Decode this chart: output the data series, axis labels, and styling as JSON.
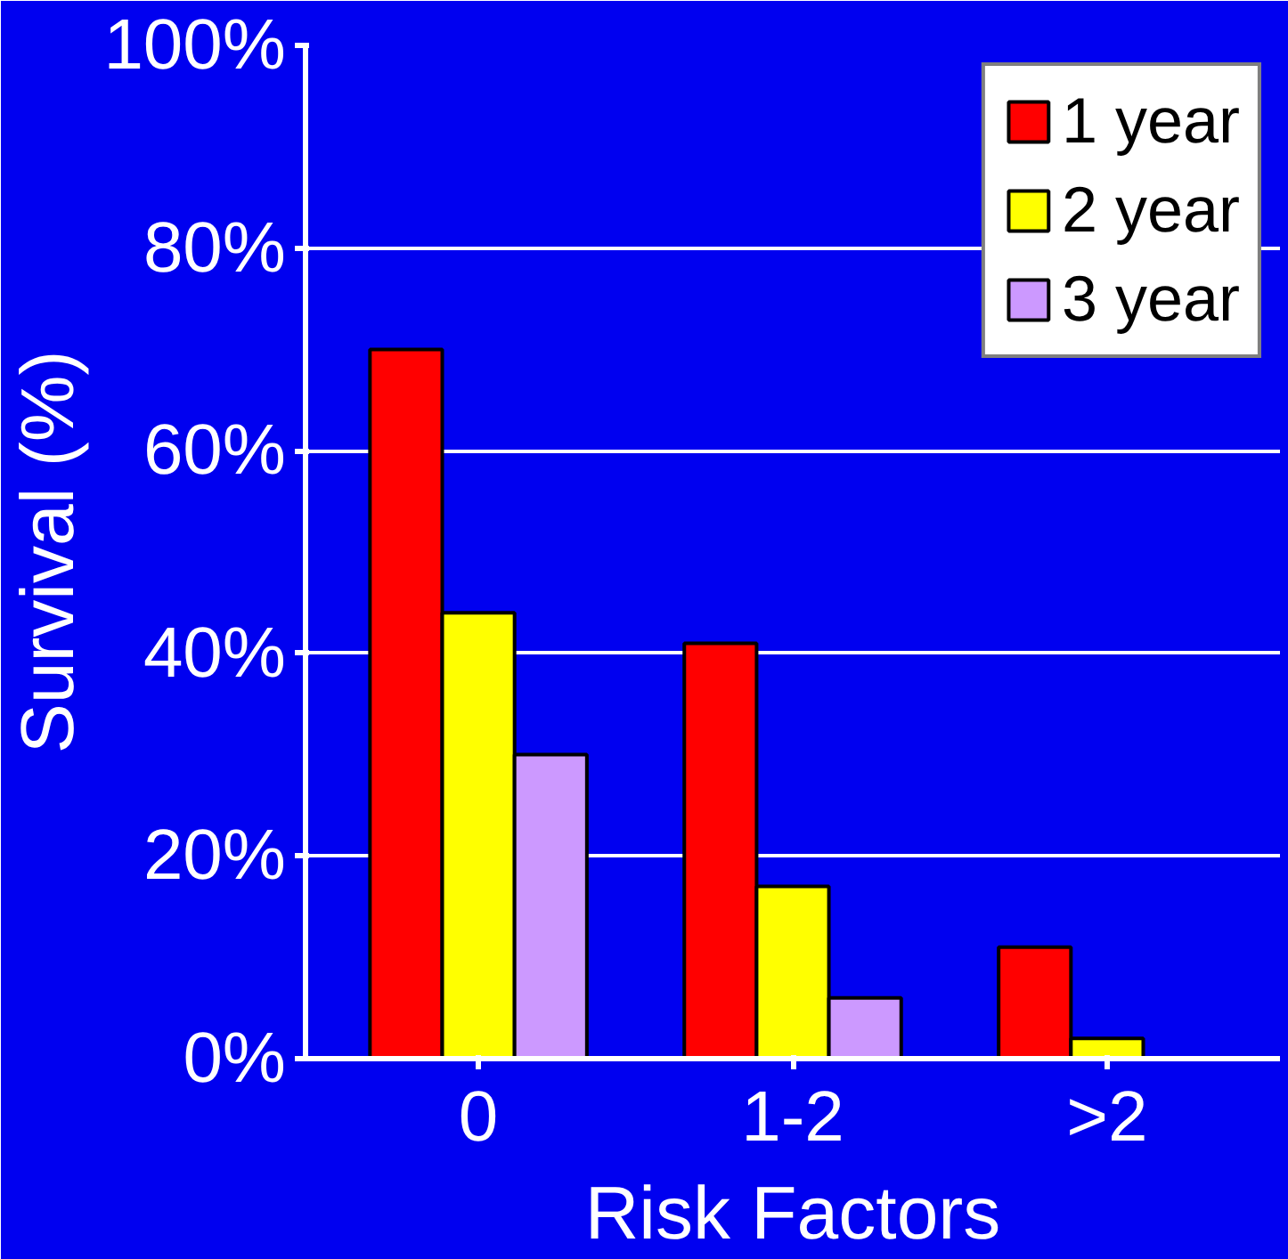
{
  "chart_data": {
    "type": "bar",
    "xlabel": "Risk Factors",
    "ylabel": "Survival (%)",
    "categories": [
      "0",
      "1-2",
      ">2"
    ],
    "series": [
      {
        "name": "1 year",
        "color": "#ff0000",
        "values": [
          70,
          41,
          11
        ]
      },
      {
        "name": "2 year",
        "color": "#ffff00",
        "values": [
          44,
          17,
          2
        ]
      },
      {
        "name": "3 year",
        "color": "#cc99ff",
        "values": [
          30,
          6,
          0
        ]
      }
    ],
    "ylim": [
      0,
      100
    ],
    "yticks": [
      {
        "value": 0,
        "label": "0%"
      },
      {
        "value": 20,
        "label": "20%"
      },
      {
        "value": 40,
        "label": "40%"
      },
      {
        "value": 60,
        "label": "60%"
      },
      {
        "value": 80,
        "label": "80%"
      },
      {
        "value": 100,
        "label": "100%"
      }
    ],
    "grid": "y",
    "legend": "top right"
  }
}
